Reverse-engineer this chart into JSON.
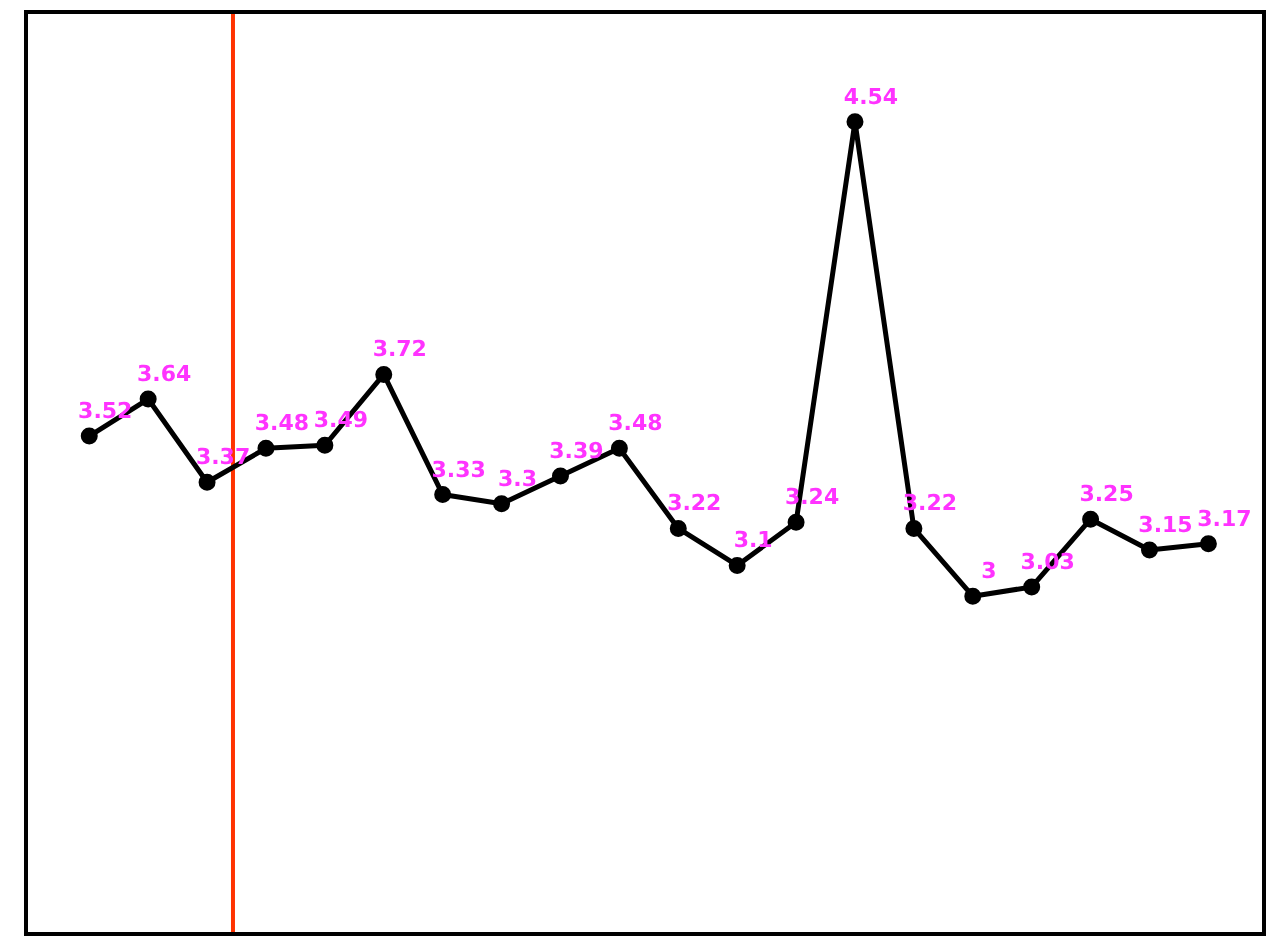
{
  "chart_data": {
    "type": "line",
    "categories": [
      null,
      null,
      null,
      null,
      null,
      null,
      null,
      null,
      null,
      null,
      null,
      null,
      null,
      null,
      null,
      null,
      null,
      null,
      null,
      null
    ],
    "series": [
      {
        "color": "#000000",
        "values": [
          3.52,
          3.64,
          3.37,
          3.48,
          3.49,
          3.72,
          3.33,
          3.3,
          3.39,
          3.48,
          3.22,
          3.1,
          3.24,
          4.54,
          3.22,
          3,
          3.03,
          3.25,
          3.15,
          3.17
        ]
      }
    ],
    "ylim": [
      1.91,
      4.89
    ],
    "marker": "circle",
    "line_style": "solid",
    "data_labels": true
  }
}
